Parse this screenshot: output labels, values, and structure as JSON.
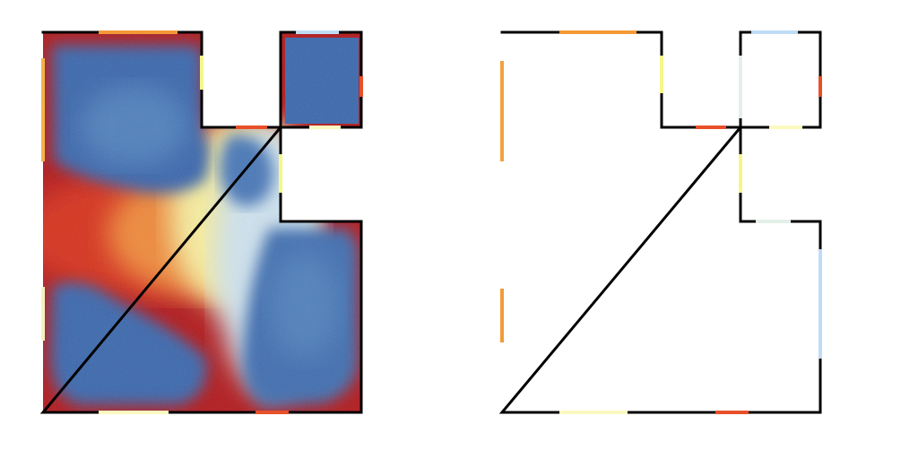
{
  "palette": {
    "deep_blue": "#3a68ad",
    "mid_blue": "#5a8cc4",
    "light_blue": "#c0dcf5",
    "pale_cyan": "#e3f0e8",
    "pale_yellow": "#fafac0",
    "yellow": "#f6f68a",
    "orange": "#f29a38",
    "red_orange": "#e8502a",
    "dark_red": "#b2181b",
    "wall": "#000000",
    "background": "#ffffff"
  },
  "panels": [
    {
      "id": "heatmap",
      "kind": "density-heatmap"
    },
    {
      "id": "outline",
      "kind": "floorplan-outline"
    }
  ]
}
